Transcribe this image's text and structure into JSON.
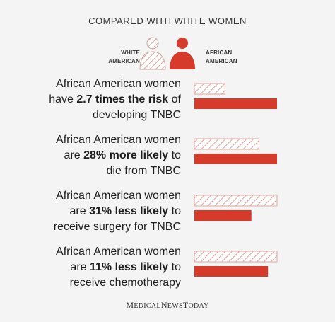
{
  "header": {
    "title": "COMPARED WITH WHITE WOMEN"
  },
  "legend": {
    "white": {
      "line1": "WHITE",
      "line2": "AMERICAN"
    },
    "african": {
      "line1": "AFRICAN",
      "line2": "AMERICAN"
    }
  },
  "rows": [
    {
      "line1": "African American women",
      "pre": "have ",
      "bold": "2.7 times the risk",
      "post": " of",
      "line3": "developing TNBC"
    },
    {
      "line1": "African American women",
      "pre": "are ",
      "bold": "28% more likely",
      "post": " to",
      "line3": "die from TNBC"
    },
    {
      "line1": "African American women",
      "pre": "are ",
      "bold": "31% less likely",
      "post": " to",
      "line3": "receive surgery for TNBC"
    },
    {
      "line1": "African American women",
      "pre": "are ",
      "bold": "11% less likely",
      "post": " to",
      "line3": "receive chemotherapy"
    }
  ],
  "colors": {
    "white_american": "#e0a39b",
    "african_american": "#d63a2b"
  },
  "chart_data": {
    "type": "bar",
    "categories": [
      "African American women have 2.7 times the risk of developing TNBC",
      "African American women are 28% more likely to die from TNBC",
      "African American women are 31% less likely to receive surgery for TNBC",
      "African American women are 11% less likely to receive chemotherapy"
    ],
    "series": [
      {
        "name": "WHITE AMERICAN",
        "values": [
          1.0,
          1.0,
          1.0,
          1.0
        ]
      },
      {
        "name": "AFRICAN AMERICAN",
        "values": [
          2.7,
          1.28,
          0.69,
          0.89
        ]
      }
    ],
    "title": "COMPARED WITH WHITE WOMEN",
    "xlabel": "",
    "ylabel": "",
    "grid": false,
    "legend": "top"
  },
  "footer": {
    "brand_parts": [
      "M",
      "EDICAL",
      "N",
      "EWS",
      "T",
      "ODAY"
    ]
  }
}
